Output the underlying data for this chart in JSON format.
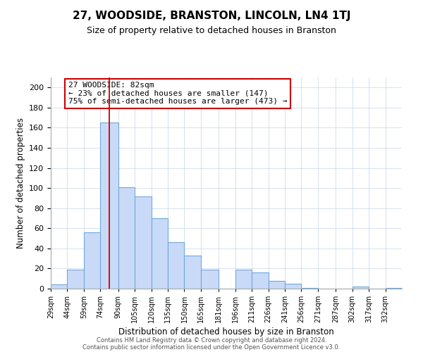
{
  "title": "27, WOODSIDE, BRANSTON, LINCOLN, LN4 1TJ",
  "subtitle": "Size of property relative to detached houses in Branston",
  "xlabel": "Distribution of detached houses by size in Branston",
  "ylabel": "Number of detached properties",
  "bin_labels": [
    "29sqm",
    "44sqm",
    "59sqm",
    "74sqm",
    "90sqm",
    "105sqm",
    "120sqm",
    "135sqm",
    "150sqm",
    "165sqm",
    "181sqm",
    "196sqm",
    "211sqm",
    "226sqm",
    "241sqm",
    "256sqm",
    "271sqm",
    "287sqm",
    "302sqm",
    "317sqm",
    "332sqm"
  ],
  "bin_edges": [
    29,
    44,
    59,
    74,
    90,
    105,
    120,
    135,
    150,
    165,
    181,
    196,
    211,
    226,
    241,
    256,
    271,
    287,
    302,
    317,
    332
  ],
  "bar_heights": [
    4,
    19,
    56,
    165,
    101,
    92,
    70,
    46,
    33,
    19,
    0,
    19,
    16,
    8,
    5,
    1,
    0,
    0,
    2,
    0,
    1
  ],
  "bar_color": "#c9daf8",
  "bar_edge_color": "#6fa8dc",
  "grid_color": "#c8d4e8",
  "property_line_x": 82,
  "property_line_color": "#cc0000",
  "annotation_title": "27 WOODSIDE: 82sqm",
  "annotation_line1": "← 23% of detached houses are smaller (147)",
  "annotation_line2": "75% of semi-detached houses are larger (473) →",
  "annotation_box_color": "#ffffff",
  "annotation_box_edge": "#cc0000",
  "ylim": [
    0,
    210
  ],
  "yticks": [
    0,
    20,
    40,
    60,
    80,
    100,
    120,
    140,
    160,
    180,
    200
  ],
  "footer1": "Contains HM Land Registry data © Crown copyright and database right 2024.",
  "footer2": "Contains public sector information licensed under the Open Government Licence v3.0.",
  "background_color": "#ffffff",
  "fig_width": 6.0,
  "fig_height": 5.0,
  "dpi": 100
}
